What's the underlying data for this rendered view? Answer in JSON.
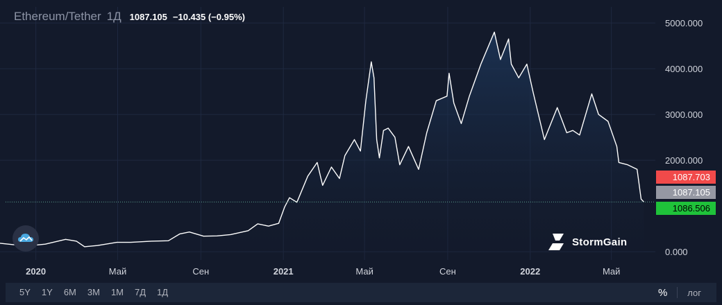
{
  "legend": {
    "symbol": "Ethereum/Tether",
    "interval": "1Д",
    "price": "1087.105",
    "change": "−10.435 (−0.95%)"
  },
  "price_tags": {
    "ask": "1087.703",
    "last": "1087.105",
    "bid": "1086.506"
  },
  "brand": {
    "name": "StormGain"
  },
  "range_buttons": [
    "5Y",
    "1Y",
    "6M",
    "3M",
    "1M",
    "7Д",
    "1Д"
  ],
  "scale_controls": {
    "percent": "%",
    "log": "лог"
  },
  "colors": {
    "background": "#131a2b",
    "line": "#ffffff",
    "area_fill": "#1a3350",
    "ask_tag": "#f14a4a",
    "last_tag": "#9598a3",
    "bid_tag": "#1fc23a",
    "last_price_line": "#5b9e8e"
  },
  "chart_data": {
    "type": "area",
    "title": "",
    "xlabel": "",
    "ylabel": "",
    "y_ticks": [
      "5000.000",
      "4000.000",
      "3000.000",
      "2000.000",
      "0.000"
    ],
    "y_tick_values": [
      5000,
      4000,
      3000,
      2000,
      0
    ],
    "ylim": [
      -180,
      5350
    ],
    "x_ticks": [
      {
        "label": "2020",
        "date": "2020-01-01",
        "year": true
      },
      {
        "label": "Май",
        "date": "2020-05-01",
        "year": false
      },
      {
        "label": "Сен",
        "date": "2020-09-01",
        "year": false
      },
      {
        "label": "2021",
        "date": "2021-01-01",
        "year": true
      },
      {
        "label": "Май",
        "date": "2021-05-01",
        "year": false
      },
      {
        "label": "Сен",
        "date": "2021-09-01",
        "year": false
      },
      {
        "label": "2022",
        "date": "2022-01-01",
        "year": true
      },
      {
        "label": "Май",
        "date": "2022-05-01",
        "year": false
      }
    ],
    "xlim": [
      "2019-11-09",
      "2022-07-05"
    ],
    "grid": true,
    "series": [
      {
        "points": [
          [
            "2019-11-09",
            185
          ],
          [
            "2019-12-01",
            150
          ],
          [
            "2019-12-20",
            128
          ],
          [
            "2020-01-15",
            165
          ],
          [
            "2020-02-14",
            270
          ],
          [
            "2020-03-01",
            230
          ],
          [
            "2020-03-13",
            110
          ],
          [
            "2020-04-01",
            135
          ],
          [
            "2020-04-30",
            205
          ],
          [
            "2020-05-20",
            205
          ],
          [
            "2020-06-20",
            230
          ],
          [
            "2020-07-15",
            240
          ],
          [
            "2020-08-01",
            390
          ],
          [
            "2020-08-15",
            430
          ],
          [
            "2020-09-05",
            340
          ],
          [
            "2020-09-25",
            345
          ],
          [
            "2020-10-15",
            375
          ],
          [
            "2020-11-10",
            460
          ],
          [
            "2020-11-24",
            610
          ],
          [
            "2020-12-10",
            560
          ],
          [
            "2020-12-25",
            620
          ],
          [
            "2021-01-03",
            980
          ],
          [
            "2021-01-10",
            1180
          ],
          [
            "2021-01-21",
            1080
          ],
          [
            "2021-02-06",
            1650
          ],
          [
            "2021-02-20",
            1950
          ],
          [
            "2021-02-28",
            1450
          ],
          [
            "2021-03-13",
            1850
          ],
          [
            "2021-03-25",
            1600
          ],
          [
            "2021-04-02",
            2100
          ],
          [
            "2021-04-16",
            2450
          ],
          [
            "2021-04-25",
            2200
          ],
          [
            "2021-05-03",
            3300
          ],
          [
            "2021-05-11",
            4150
          ],
          [
            "2021-05-15",
            3800
          ],
          [
            "2021-05-19",
            2450
          ],
          [
            "2021-05-23",
            2050
          ],
          [
            "2021-05-29",
            2650
          ],
          [
            "2021-06-05",
            2700
          ],
          [
            "2021-06-15",
            2500
          ],
          [
            "2021-06-22",
            1900
          ],
          [
            "2021-07-05",
            2300
          ],
          [
            "2021-07-20",
            1800
          ],
          [
            "2021-08-01",
            2600
          ],
          [
            "2021-08-15",
            3300
          ],
          [
            "2021-08-31",
            3400
          ],
          [
            "2021-09-03",
            3900
          ],
          [
            "2021-09-10",
            3250
          ],
          [
            "2021-09-21",
            2800
          ],
          [
            "2021-10-03",
            3400
          ],
          [
            "2021-10-20",
            4100
          ],
          [
            "2021-11-09",
            4800
          ],
          [
            "2021-11-18",
            4200
          ],
          [
            "2021-11-30",
            4650
          ],
          [
            "2021-12-04",
            4100
          ],
          [
            "2021-12-15",
            3800
          ],
          [
            "2021-12-27",
            4100
          ],
          [
            "2022-01-05",
            3500
          ],
          [
            "2022-01-22",
            2450
          ],
          [
            "2022-02-10",
            3150
          ],
          [
            "2022-02-24",
            2600
          ],
          [
            "2022-03-05",
            2650
          ],
          [
            "2022-03-15",
            2550
          ],
          [
            "2022-04-02",
            3450
          ],
          [
            "2022-04-12",
            3000
          ],
          [
            "2022-04-26",
            2850
          ],
          [
            "2022-05-09",
            2300
          ],
          [
            "2022-05-12",
            1950
          ],
          [
            "2022-05-25",
            1900
          ],
          [
            "2022-06-08",
            1800
          ],
          [
            "2022-06-14",
            1150
          ],
          [
            "2022-06-18",
            1087
          ]
        ]
      }
    ]
  }
}
